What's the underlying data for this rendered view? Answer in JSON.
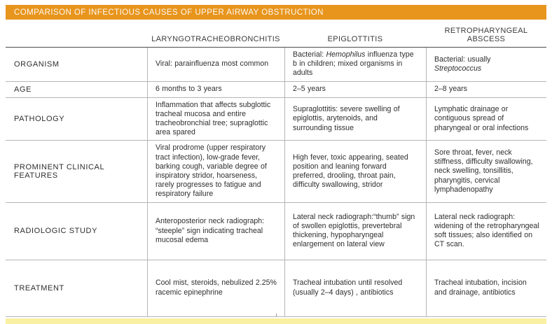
{
  "title": "COMPARISON OF INFECTIOUS CAUSES OF UPPER AIRWAY OBSTRUCTION",
  "colors": {
    "title_bar": "#E8951E",
    "title_text": "#FDF8F0",
    "bottom_strip": "#FAF0A3",
    "rule_dark": "#4D4D4D",
    "rule_light": "#B5B5B5"
  },
  "table": {
    "columns": [
      "LARYNGOTRACHEOBRONCHITIS",
      "EPIGLOTTITIS",
      "RETROPHARYNGEAL ABSCESS"
    ],
    "rows": [
      {
        "label": "ORGANISM",
        "cells": [
          [
            {
              "t": "Viral: parainfluenza most common"
            }
          ],
          [
            {
              "t": "Bacterial: "
            },
            {
              "t": "Hemophilus",
              "italic": true
            },
            {
              "t": " influenza type b in children; mixed organisms in adults"
            }
          ],
          [
            {
              "t": "Bacterial: usually "
            },
            {
              "t": "Streptococcus",
              "italic": true
            }
          ]
        ]
      },
      {
        "label": "AGE",
        "cells": [
          [
            {
              "t": "6 months to 3 years"
            }
          ],
          [
            {
              "t": "2–5 years"
            }
          ],
          [
            {
              "t": "2–8 years"
            }
          ]
        ]
      },
      {
        "label": "PATHOLOGY",
        "cells": [
          [
            {
              "t": "Inflammation that affects subglottic tracheal mucosa and entire tracheobronchial tree; supraglottic area spared"
            }
          ],
          [
            {
              "t": "Supraglottitis: severe swelling of epiglottis, arytenoids, and surrounding tissue"
            }
          ],
          [
            {
              "t": "Lymphatic drainage or contiguous spread of pharyngeal or oral infections"
            }
          ]
        ]
      },
      {
        "label": "PROMINENT CLINICAL FEATURES",
        "cells": [
          [
            {
              "t": "Viral prodrome (upper respiratory tract infection), low-grade fever, barking cough, variable degree of inspiratory stridor, hoarseness, rarely progresses to fatigue and respiratory failure"
            }
          ],
          [
            {
              "t": "High fever, toxic appearing, seated position and leaning forward preferred, drooling, throat pain, difficulty swallowing, stridor"
            }
          ],
          [
            {
              "t": "Sore throat, fever, neck stiffness, difficulty swallowing, neck swelling, tonsillitis, pharyngitis, cervical lymphadenopathy"
            }
          ]
        ]
      },
      {
        "label": "RADIOLOGIC STUDY",
        "cells": [
          [
            {
              "t": "Anteroposterior neck radiograph: “steeple” sign indicating tracheal mucosal edema"
            }
          ],
          [
            {
              "t": "Lateral neck radiograph:“thumb” sign of swollen epiglottis, prevertebral thickening, hypopharyngeal enlargement on lateral view"
            }
          ],
          [
            {
              "t": "Lateral neck radiograph: widening of the retropharyngeal soft tissues; also identified on CT scan."
            }
          ]
        ]
      },
      {
        "label": "TREATMENT",
        "cells": [
          [
            {
              "t": "Cool mist, steroids, nebulized 2.25% racemic epinephrine"
            }
          ],
          [
            {
              "t": "Tracheal intubation until resolved (usually 2–4 days) , antibiotics"
            }
          ],
          [
            {
              "t": "Tracheal intubation, incision and drainage, antibiotics"
            }
          ]
        ]
      }
    ]
  }
}
